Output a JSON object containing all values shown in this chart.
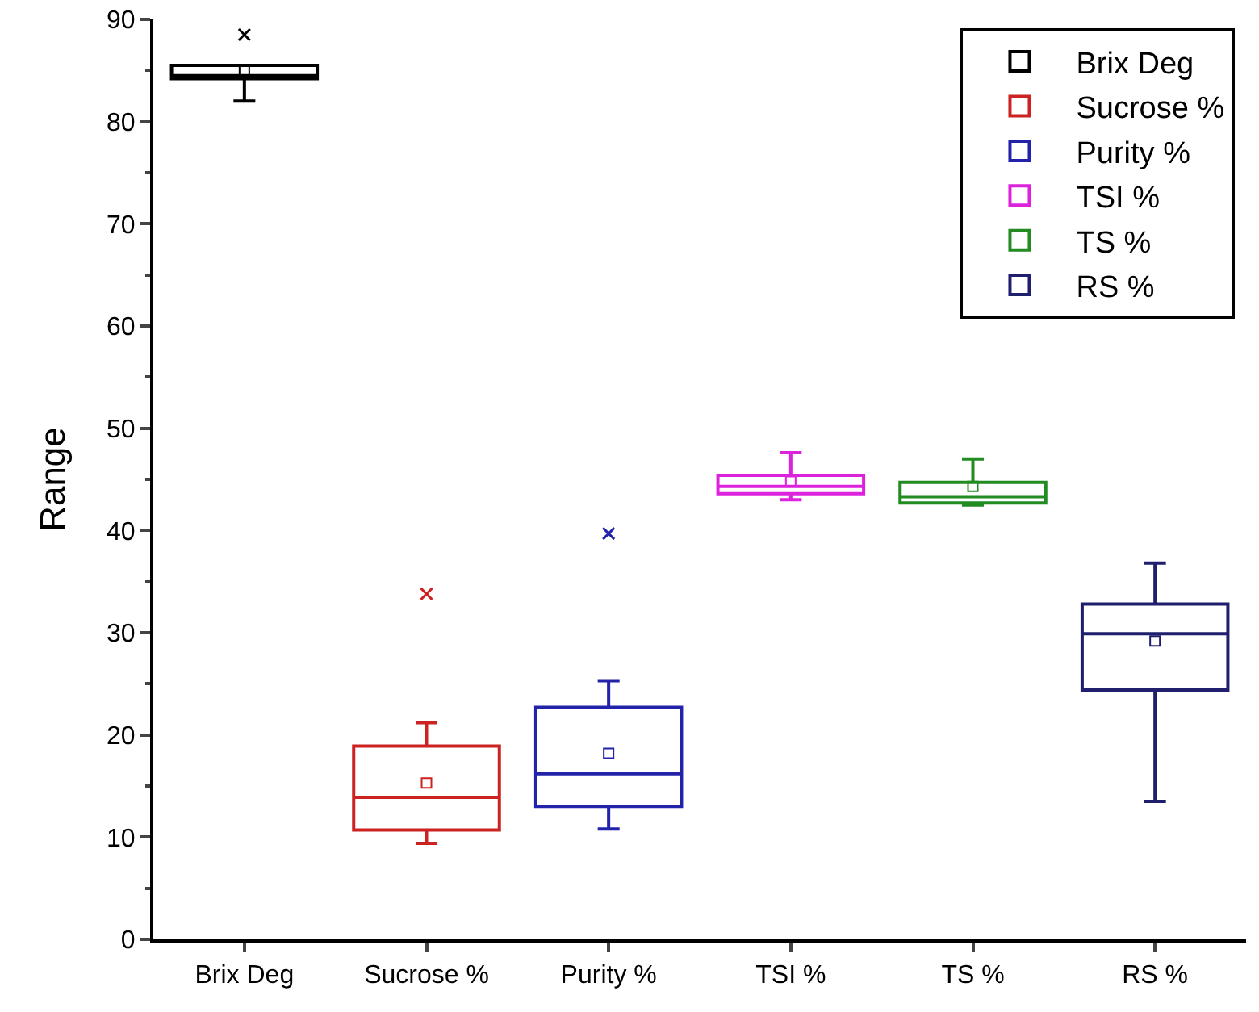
{
  "chart_data": {
    "type": "box",
    "ylabel": "Range",
    "categories": [
      "Brix Deg",
      "Sucrose %",
      "Purity %",
      "TSI %",
      "TS %",
      "RS %"
    ],
    "series": [
      {
        "name": "Brix Deg",
        "color": "#000000",
        "boxes": [
          {
            "low": 82,
            "q1": 84.2,
            "median": 84.5,
            "q3": 85.5,
            "high": 85.5,
            "mean": 85,
            "outliers": [
              88.5
            ]
          },
          null,
          null,
          null,
          null,
          null
        ]
      },
      {
        "name": "Sucrose %",
        "color": "#cc2222",
        "boxes": [
          null,
          {
            "low": 9.4,
            "q1": 10.7,
            "median": 13.9,
            "q3": 18.9,
            "high": 21.2,
            "mean": 15.3,
            "outliers": [
              33.8
            ]
          },
          null,
          null,
          null,
          null
        ]
      },
      {
        "name": "Purity %",
        "color": "#2222aa",
        "boxes": [
          null,
          null,
          {
            "low": 10.8,
            "q1": 13,
            "median": 16.2,
            "q3": 22.7,
            "high": 25.3,
            "mean": 18.2,
            "outliers": [
              39.7
            ]
          },
          null,
          null,
          null
        ]
      },
      {
        "name": "TSI %",
        "color": "#dd22dd",
        "boxes": [
          null,
          null,
          null,
          {
            "low": 43,
            "q1": 43.6,
            "median": 44.3,
            "q3": 45.4,
            "high": 47.6,
            "mean": 44.8
          },
          null,
          null
        ]
      },
      {
        "name": "TS %",
        "color": "#228b22",
        "boxes": [
          null,
          null,
          null,
          null,
          {
            "low": 42.5,
            "q1": 42.7,
            "median": 43.3,
            "q3": 44.7,
            "high": 47,
            "mean": 44.3
          },
          null
        ]
      },
      {
        "name": "RS %",
        "color": "#1f1f6e",
        "boxes": [
          null,
          null,
          null,
          null,
          null,
          {
            "low": 13.5,
            "q1": 24.4,
            "median": 29.9,
            "q3": 32.8,
            "high": 36.8,
            "mean": 29.2
          }
        ]
      }
    ],
    "ylim": [
      0,
      90
    ],
    "yticks": [
      0,
      10,
      20,
      30,
      40,
      50,
      60,
      70,
      80,
      90
    ],
    "grid": false,
    "legend": "top right"
  }
}
